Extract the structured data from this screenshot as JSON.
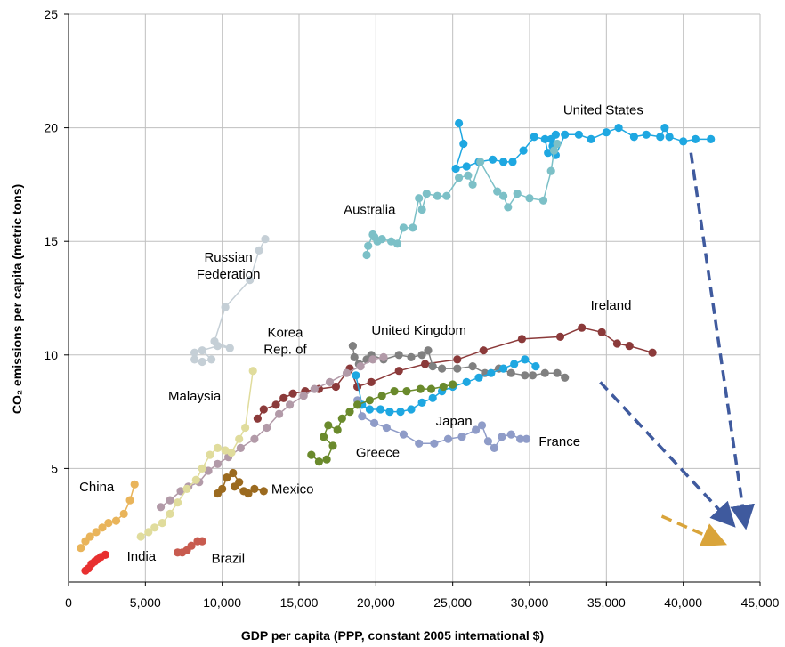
{
  "chart_data": {
    "type": "scatter",
    "title": "",
    "xlabel": "GDP per capita (PPP, constant 2005 international $)",
    "ylabel": "CO₂ emissions per capita (metric tons)",
    "xlim": [
      0,
      45000
    ],
    "ylim": [
      0,
      25
    ],
    "grid": true,
    "x_ticks": [
      {
        "value": 0,
        "label": "0"
      },
      {
        "value": 5000,
        "label": "5,000"
      },
      {
        "value": 10000,
        "label": "10,000"
      },
      {
        "value": 15000,
        "label": "15,000"
      },
      {
        "value": 20000,
        "label": "20,000"
      },
      {
        "value": 25000,
        "label": "25,000"
      },
      {
        "value": 30000,
        "label": "30,000"
      },
      {
        "value": 35000,
        "label": "35,000"
      },
      {
        "value": 40000,
        "label": "40,000"
      },
      {
        "value": 45000,
        "label": "45,000"
      }
    ],
    "y_ticks": [
      {
        "value": 5,
        "label": "5"
      },
      {
        "value": 10,
        "label": "10"
      },
      {
        "value": 15,
        "label": "15"
      },
      {
        "value": 20,
        "label": "20"
      },
      {
        "value": 25,
        "label": "25"
      }
    ],
    "series": [
      {
        "name": "United States",
        "color": "#1ea7e1",
        "label_anchor": "middle",
        "label_lines": [
          "United States"
        ],
        "label_pos": [
          34800,
          20.6
        ],
        "points": [
          [
            25400,
            20.2
          ],
          [
            25700,
            19.3
          ],
          [
            25200,
            18.2
          ],
          [
            25900,
            18.3
          ],
          [
            26700,
            18.5
          ],
          [
            27600,
            18.6
          ],
          [
            28300,
            18.5
          ],
          [
            28900,
            18.5
          ],
          [
            29600,
            19.0
          ],
          [
            30300,
            19.6
          ],
          [
            31000,
            19.5
          ],
          [
            31200,
            18.9
          ],
          [
            31500,
            19.2
          ],
          [
            31700,
            19.7
          ],
          [
            31400,
            19.5
          ],
          [
            31700,
            18.8
          ],
          [
            32300,
            19.7
          ],
          [
            33200,
            19.7
          ],
          [
            34000,
            19.5
          ],
          [
            35000,
            19.8
          ],
          [
            35800,
            20.0
          ],
          [
            36800,
            19.6
          ],
          [
            37600,
            19.7
          ],
          [
            38500,
            19.6
          ],
          [
            38800,
            20.0
          ],
          [
            39100,
            19.6
          ],
          [
            40000,
            19.4
          ],
          [
            40800,
            19.5
          ],
          [
            41800,
            19.5
          ]
        ]
      },
      {
        "name": "Australia",
        "color": "#7cc0c7",
        "label_anchor": "start",
        "label_lines": [
          "Australia"
        ],
        "label_pos": [
          17900,
          16.2
        ],
        "points": [
          [
            19400,
            14.4
          ],
          [
            19500,
            14.8
          ],
          [
            19800,
            15.3
          ],
          [
            20100,
            15.0
          ],
          [
            19900,
            15.2
          ],
          [
            20400,
            15.1
          ],
          [
            21000,
            15.0
          ],
          [
            21400,
            14.9
          ],
          [
            21800,
            15.6
          ],
          [
            22400,
            15.6
          ],
          [
            22800,
            16.9
          ],
          [
            23000,
            16.4
          ],
          [
            23300,
            17.1
          ],
          [
            24000,
            17.0
          ],
          [
            24600,
            17.0
          ],
          [
            25400,
            17.8
          ],
          [
            26000,
            17.9
          ],
          [
            26300,
            17.5
          ],
          [
            26800,
            18.5
          ],
          [
            27900,
            17.2
          ],
          [
            28300,
            17.0
          ],
          [
            28600,
            16.5
          ],
          [
            29200,
            17.1
          ],
          [
            30000,
            16.9
          ],
          [
            30900,
            16.8
          ],
          [
            31400,
            18.1
          ],
          [
            31600,
            19.0
          ],
          [
            31800,
            19.3
          ]
        ]
      },
      {
        "name": "Russian Federation",
        "color": "#c5cfd6",
        "label_anchor": "middle",
        "label_lines": [
          "Russian",
          "Federation"
        ],
        "label_pos": [
          10400,
          14.1
        ],
        "points": [
          [
            8200,
            9.8
          ],
          [
            8700,
            9.7
          ],
          [
            9300,
            9.8
          ],
          [
            8700,
            10.2
          ],
          [
            8200,
            10.1
          ],
          [
            9700,
            10.4
          ],
          [
            10500,
            10.3
          ],
          [
            9500,
            10.6
          ],
          [
            10200,
            12.1
          ],
          [
            11800,
            13.3
          ],
          [
            12400,
            14.6
          ],
          [
            12800,
            15.1
          ]
        ]
      },
      {
        "name": "Ireland",
        "color": "#8b3a3a",
        "label_anchor": "middle",
        "label_lines": [
          "Ireland"
        ],
        "label_pos": [
          35300,
          12.0
        ],
        "points": [
          [
            12300,
            7.2
          ],
          [
            12700,
            7.6
          ],
          [
            13500,
            7.8
          ],
          [
            14000,
            8.1
          ],
          [
            14600,
            8.3
          ],
          [
            15400,
            8.4
          ],
          [
            16300,
            8.5
          ],
          [
            17400,
            8.6
          ],
          [
            18300,
            9.4
          ],
          [
            18800,
            8.6
          ],
          [
            19700,
            8.8
          ],
          [
            21500,
            9.3
          ],
          [
            23200,
            9.6
          ],
          [
            25300,
            9.8
          ],
          [
            27000,
            10.2
          ],
          [
            29500,
            10.7
          ],
          [
            32000,
            10.8
          ],
          [
            33400,
            11.2
          ],
          [
            34700,
            11.0
          ],
          [
            35700,
            10.5
          ],
          [
            36500,
            10.4
          ],
          [
            38000,
            10.1
          ]
        ]
      },
      {
        "name": "United Kingdom",
        "color": "#808080",
        "label_anchor": "middle",
        "label_lines": [
          "United Kingdom"
        ],
        "label_pos": [
          22800,
          10.9
        ],
        "points": [
          [
            18500,
            10.4
          ],
          [
            18600,
            9.9
          ],
          [
            18900,
            9.6
          ],
          [
            19400,
            9.8
          ],
          [
            19700,
            10.0
          ],
          [
            20500,
            9.8
          ],
          [
            21500,
            10.0
          ],
          [
            22300,
            9.9
          ],
          [
            23000,
            10.0
          ],
          [
            23400,
            10.2
          ],
          [
            23700,
            9.5
          ],
          [
            24300,
            9.4
          ],
          [
            25300,
            9.4
          ],
          [
            26300,
            9.5
          ],
          [
            27100,
            9.2
          ],
          [
            28000,
            9.4
          ],
          [
            28800,
            9.2
          ],
          [
            29700,
            9.1
          ],
          [
            30200,
            9.1
          ],
          [
            31000,
            9.2
          ],
          [
            31800,
            9.2
          ],
          [
            32300,
            9.0
          ]
        ]
      },
      {
        "name": "Korea Rep. of",
        "color": "#b29aa8",
        "label_anchor": "middle",
        "label_lines": [
          "Korea",
          "Rep. of"
        ],
        "label_pos": [
          14100,
          10.8
        ],
        "points": [
          [
            6000,
            3.3
          ],
          [
            6600,
            3.6
          ],
          [
            7300,
            4.0
          ],
          [
            7800,
            4.2
          ],
          [
            8500,
            4.4
          ],
          [
            9100,
            4.9
          ],
          [
            9700,
            5.2
          ],
          [
            10400,
            5.5
          ],
          [
            11200,
            5.9
          ],
          [
            12100,
            6.3
          ],
          [
            12900,
            6.8
          ],
          [
            13700,
            7.4
          ],
          [
            14400,
            7.8
          ],
          [
            15300,
            8.2
          ],
          [
            16000,
            8.5
          ],
          [
            17000,
            8.8
          ],
          [
            18100,
            9.2
          ],
          [
            19000,
            9.5
          ],
          [
            19800,
            9.8
          ],
          [
            20500,
            9.9
          ]
        ]
      },
      {
        "name": "Malaysia",
        "color": "#e0dc9c",
        "label_anchor": "middle",
        "label_lines": [
          "Malaysia"
        ],
        "label_pos": [
          8200,
          8.0
        ],
        "points": [
          [
            4700,
            2.0
          ],
          [
            5200,
            2.2
          ],
          [
            5600,
            2.4
          ],
          [
            6100,
            2.6
          ],
          [
            6600,
            3.0
          ],
          [
            7100,
            3.5
          ],
          [
            7700,
            4.1
          ],
          [
            8300,
            4.5
          ],
          [
            8700,
            5.0
          ],
          [
            9200,
            5.6
          ],
          [
            9700,
            5.9
          ],
          [
            10200,
            5.8
          ],
          [
            10600,
            5.7
          ],
          [
            11100,
            6.3
          ],
          [
            11500,
            6.8
          ],
          [
            12000,
            9.3
          ]
        ]
      },
      {
        "name": "Japan",
        "color": "#1ea7e1",
        "label_anchor": "start",
        "label_lines": [
          "Japan"
        ],
        "label_pos": [
          23900,
          6.9
        ],
        "points": [
          [
            18700,
            9.1
          ],
          [
            19100,
            7.8
          ],
          [
            19600,
            7.6
          ],
          [
            20300,
            7.6
          ],
          [
            20900,
            7.5
          ],
          [
            21600,
            7.5
          ],
          [
            22300,
            7.6
          ],
          [
            23000,
            7.9
          ],
          [
            23700,
            8.1
          ],
          [
            24300,
            8.4
          ],
          [
            25000,
            8.6
          ],
          [
            25900,
            8.8
          ],
          [
            26700,
            9.0
          ],
          [
            27500,
            9.2
          ],
          [
            28300,
            9.4
          ],
          [
            29000,
            9.6
          ],
          [
            29700,
            9.8
          ],
          [
            30400,
            9.5
          ]
        ]
      },
      {
        "name": "France",
        "color": "#8f9cc8",
        "label_anchor": "start",
        "label_lines": [
          "France"
        ],
        "label_pos": [
          30600,
          6.0
        ],
        "points": [
          [
            18800,
            8.0
          ],
          [
            19100,
            7.3
          ],
          [
            19900,
            7.0
          ],
          [
            20700,
            6.8
          ],
          [
            21800,
            6.5
          ],
          [
            22800,
            6.1
          ],
          [
            23800,
            6.1
          ],
          [
            24700,
            6.3
          ],
          [
            25600,
            6.4
          ],
          [
            26500,
            6.7
          ],
          [
            26900,
            6.9
          ],
          [
            27300,
            6.2
          ],
          [
            27700,
            5.9
          ],
          [
            28200,
            6.4
          ],
          [
            28800,
            6.5
          ],
          [
            29400,
            6.3
          ],
          [
            29800,
            6.3
          ]
        ]
      },
      {
        "name": "Greece",
        "color": "#6a8a2c",
        "label_anchor": "start",
        "label_lines": [
          "Greece"
        ],
        "label_pos": [
          18700,
          5.5
        ],
        "points": [
          [
            15800,
            5.6
          ],
          [
            16300,
            5.3
          ],
          [
            16800,
            5.4
          ],
          [
            17200,
            6.0
          ],
          [
            16600,
            6.4
          ],
          [
            16900,
            6.9
          ],
          [
            17500,
            6.7
          ],
          [
            17800,
            7.2
          ],
          [
            18300,
            7.5
          ],
          [
            18800,
            7.8
          ],
          [
            19600,
            8.0
          ],
          [
            20400,
            8.2
          ],
          [
            21200,
            8.4
          ],
          [
            22000,
            8.4
          ],
          [
            22900,
            8.5
          ],
          [
            23600,
            8.5
          ],
          [
            24400,
            8.6
          ],
          [
            25000,
            8.7
          ]
        ]
      },
      {
        "name": "Mexico",
        "color": "#9b6a1f",
        "label_anchor": "start",
        "label_lines": [
          "Mexico"
        ],
        "label_pos": [
          13200,
          3.9
        ],
        "points": [
          [
            9700,
            3.9
          ],
          [
            10000,
            4.1
          ],
          [
            10300,
            4.6
          ],
          [
            10700,
            4.8
          ],
          [
            11100,
            4.4
          ],
          [
            10800,
            4.2
          ],
          [
            11400,
            4.0
          ],
          [
            11700,
            3.9
          ],
          [
            12100,
            4.1
          ],
          [
            12700,
            4.0
          ]
        ]
      },
      {
        "name": "China",
        "color": "#e9b45a",
        "label_anchor": "start",
        "label_lines": [
          "China"
        ],
        "label_pos": [
          700,
          4.0
        ],
        "points": [
          [
            800,
            1.5
          ],
          [
            1100,
            1.8
          ],
          [
            1400,
            2.0
          ],
          [
            1800,
            2.2
          ],
          [
            2200,
            2.4
          ],
          [
            2600,
            2.6
          ],
          [
            3100,
            2.7
          ],
          [
            3600,
            3.0
          ],
          [
            4000,
            3.6
          ],
          [
            4300,
            4.3
          ]
        ]
      },
      {
        "name": "India",
        "color": "#e83030",
        "label_anchor": "start",
        "label_lines": [
          "India"
        ],
        "label_pos": [
          3800,
          0.95
        ],
        "points": [
          [
            1100,
            0.5
          ],
          [
            1300,
            0.6
          ],
          [
            1500,
            0.8
          ],
          [
            1700,
            0.9
          ],
          [
            1900,
            1.0
          ],
          [
            2100,
            1.1
          ],
          [
            2400,
            1.2
          ]
        ]
      },
      {
        "name": "Brazil",
        "color": "#c85b4f",
        "label_anchor": "start",
        "label_lines": [
          "Brazil"
        ],
        "label_pos": [
          9300,
          0.85
        ],
        "points": [
          [
            7100,
            1.3
          ],
          [
            7400,
            1.3
          ],
          [
            7700,
            1.4
          ],
          [
            8000,
            1.6
          ],
          [
            8400,
            1.8
          ],
          [
            8700,
            1.8
          ]
        ]
      }
    ],
    "arrows": [
      {
        "from": [
          40500,
          18.9
        ],
        "to": [
          44000,
          2.7
        ],
        "color": "#3f5a9e"
      },
      {
        "from": [
          34600,
          8.8
        ],
        "to": [
          43000,
          2.7
        ],
        "color": "#3f5a9e"
      },
      {
        "from": [
          38600,
          2.9
        ],
        "to": [
          42300,
          1.8
        ],
        "color": "#d9a43a"
      }
    ]
  }
}
